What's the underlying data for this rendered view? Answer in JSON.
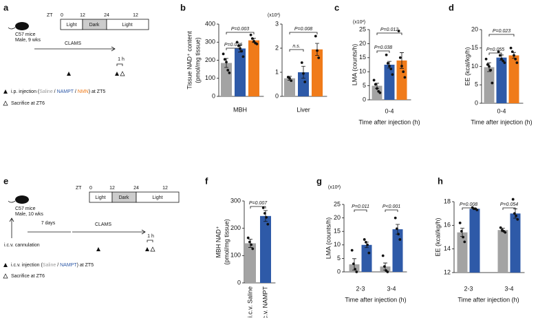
{
  "schematics": [
    {
      "label": "a",
      "subject": [
        "C57 mice",
        "Male, 9 wks"
      ],
      "zt": "ZT",
      "zt_ticks": [
        0,
        12,
        24,
        12
      ],
      "phases": [
        "Light",
        "Dark",
        "Light"
      ],
      "protocol": "CLAMS",
      "interval": "1 h",
      "injection": [
        "i.p. injection (",
        "Saline",
        " / ",
        "NAMPT",
        " / ",
        "NMN",
        ") at ZT5"
      ],
      "sacrifice": "Sacrifice at ZT6"
    },
    {
      "label": "e",
      "subject": [
        "C57 mice",
        "Male, 10 wks"
      ],
      "zt": "ZT",
      "zt_ticks": [
        0,
        12,
        24,
        12
      ],
      "phases": [
        "Light",
        "Dark",
        "Light"
      ],
      "protocol": "CLAMS",
      "interval": "1 h",
      "cannulation": "i.c.v. cannulation",
      "wait": "7 days",
      "injection": [
        "i.c.v. injection (",
        "Saline",
        " / ",
        "NAMPT",
        ") at ZT5"
      ],
      "sacrifice": "Sacrifice at ZT6"
    }
  ],
  "chart_data": [
    {
      "type": "bar",
      "label": "b",
      "ylabel": [
        "Tissue NAD⁺ content",
        "(pmol/mg tissue)"
      ],
      "categories": [
        "MBH"
      ],
      "ylim": [
        0,
        400
      ],
      "yticks": [
        0,
        100,
        200,
        300,
        400
      ],
      "series": [
        {
          "color": "#a3a3a3",
          "values": [
            185
          ],
          "errors": [
            25
          ],
          "points": [
            [
              235,
              205,
              190,
              145,
              130
            ]
          ]
        },
        {
          "color": "#2e5aa8",
          "values": [
            265
          ],
          "errors": [
            20
          ],
          "points": [
            [
              300,
              280,
              265,
              250,
              220
            ]
          ]
        },
        {
          "color": "#f07b1a",
          "values": [
            310
          ],
          "errors": [
            12
          ],
          "points": [
            [
              340,
              320,
              305,
              295,
              290
            ]
          ]
        }
      ],
      "annotations": [
        "P=0.003",
        "P=0.036"
      ]
    },
    {
      "type": "bar",
      "multiplier": "(x10³)",
      "categories": [
        "Liver"
      ],
      "ylim": [
        0,
        3
      ],
      "yticks": [
        0,
        1,
        2,
        3
      ],
      "series": [
        {
          "color": "#a3a3a3",
          "values": [
            0.75
          ],
          "errors": [
            0.08
          ],
          "points": [
            [
              0.8,
              0.75,
              0.65
            ]
          ]
        },
        {
          "color": "#2e5aa8",
          "values": [
            1.0
          ],
          "errors": [
            0.25
          ],
          "points": [
            [
              1.4,
              0.95,
              0.6
            ]
          ]
        },
        {
          "color": "#f07b1a",
          "values": [
            1.95
          ],
          "errors": [
            0.25
          ],
          "points": [
            [
              2.5,
              1.9,
              1.6
            ]
          ]
        }
      ],
      "annotations": [
        "P=0.008",
        "n.s."
      ]
    },
    {
      "type": "bar",
      "label": "c",
      "multiplier": "(x10²)",
      "ylabel": [
        "LMA (counts/h)"
      ],
      "xlabel": "Time after injection (h)",
      "categories": [
        "0-4"
      ],
      "ylim": [
        0,
        25
      ],
      "yticks": [
        0,
        5,
        10,
        15,
        20,
        25
      ],
      "series": [
        {
          "color": "#a3a3a3",
          "values": [
            5
          ],
          "errors": [
            0.9
          ],
          "points": [
            [
              7,
              5.5,
              4,
              3,
              2.5
            ]
          ]
        },
        {
          "color": "#2e5aa8",
          "values": [
            12.5
          ],
          "errors": [
            1.2
          ],
          "points": [
            [
              16,
              13,
              12,
              11,
              9
            ]
          ]
        },
        {
          "color": "#f07b1a",
          "values": [
            14
          ],
          "errors": [
            2.8
          ],
          "points": [
            [
              24.5,
              15,
              12,
              10,
              8
            ]
          ]
        }
      ],
      "annotations": [
        "P=0.012",
        "P=0.038"
      ]
    },
    {
      "type": "bar",
      "label": "d",
      "ylabel": [
        "EE (kcal/kg/h)"
      ],
      "xlabel": "Time after injection (h)",
      "categories": [
        "0-4"
      ],
      "ylim": [
        0,
        20
      ],
      "yticks": [
        0,
        5,
        10,
        15,
        20
      ],
      "series": [
        {
          "color": "#a3a3a3",
          "values": [
            9.8
          ],
          "errors": [
            1.2
          ],
          "points": [
            [
              12,
              10.5,
              10,
              9,
              5.5
            ]
          ]
        },
        {
          "color": "#2e5aa8",
          "values": [
            12.4
          ],
          "errors": [
            0.7
          ],
          "points": [
            [
              14,
              13,
              12,
              11.5,
              11
            ]
          ]
        },
        {
          "color": "#f07b1a",
          "values": [
            13
          ],
          "errors": [
            0.8
          ],
          "points": [
            [
              15,
              14,
              13,
              12,
              11
            ]
          ]
        }
      ],
      "annotations": [
        "P=0.023",
        "P=0.055"
      ]
    },
    {
      "type": "bar",
      "label": "f",
      "ylabel": [
        "MBH NAD⁺",
        "(pmol/mg tissue)"
      ],
      "categories": [
        "i.c.v. Saline",
        "i.c.v. NAMPT"
      ],
      "ylim": [
        0,
        300
      ],
      "yticks": [
        0,
        100,
        200,
        300
      ],
      "series": [
        {
          "colors": [
            "#a3a3a3",
            "#2e5aa8"
          ],
          "values": [
            145,
            245
          ],
          "errors": [
            15,
            20
          ],
          "points": [
            [
              165,
              150,
              140,
              125
            ],
            [
              275,
              255,
              240,
              215
            ]
          ]
        }
      ],
      "annotations": [
        "P=0.007"
      ]
    },
    {
      "type": "bar",
      "label": "g",
      "multiplier": "(x10²)",
      "ylabel": [
        "LMA (counts/h)"
      ],
      "xlabel": "Time after injection (h)",
      "categories": [
        "2-3",
        "3-4"
      ],
      "ylim": [
        0,
        25
      ],
      "yticks": [
        0,
        5,
        10,
        15,
        20,
        25
      ],
      "series": [
        {
          "color": "#a3a3a3",
          "values": [
            2.8,
            2
          ],
          "errors": [
            2.1,
            1.3
          ],
          "points": [
            [
              8,
              3,
              1,
              0
            ],
            [
              6,
              2,
              0.5,
              0
            ]
          ]
        },
        {
          "color": "#2e5aa8",
          "values": [
            10,
            15.8
          ],
          "errors": [
            1.0,
            1.8
          ],
          "points": [
            [
              12,
              11,
              10,
              7
            ],
            [
              20,
              16,
              14,
              12
            ]
          ]
        }
      ],
      "annotations": [
        "P=0.011",
        "P<0.001"
      ]
    },
    {
      "type": "bar",
      "label": "h",
      "ylabel": [
        "EE (kcal/kg/h)"
      ],
      "xlabel": "Time after injection (h)",
      "categories": [
        "2-3",
        "3-4"
      ],
      "ylim": [
        12,
        18
      ],
      "yticks": [
        12,
        14,
        16,
        18
      ],
      "series": [
        {
          "color": "#a3a3a3",
          "values": [
            15.4,
            15.6
          ],
          "errors": [
            0.35,
            0.15
          ],
          "points": [
            [
              16.2,
              15.5,
              15,
              14.6
            ],
            [
              15.8,
              15.6,
              15.5,
              15.4
            ]
          ]
        },
        {
          "color": "#2e5aa8",
          "values": [
            17.4,
            17.0
          ],
          "errors": [
            0.05,
            0.4
          ],
          "points": [
            [
              17.5,
              17.4,
              17.4,
              17.3
            ],
            [
              18.2,
              17,
              16.8,
              16.5
            ]
          ]
        }
      ],
      "annotations": [
        "P=0.008",
        "P=0.054"
      ]
    }
  ]
}
